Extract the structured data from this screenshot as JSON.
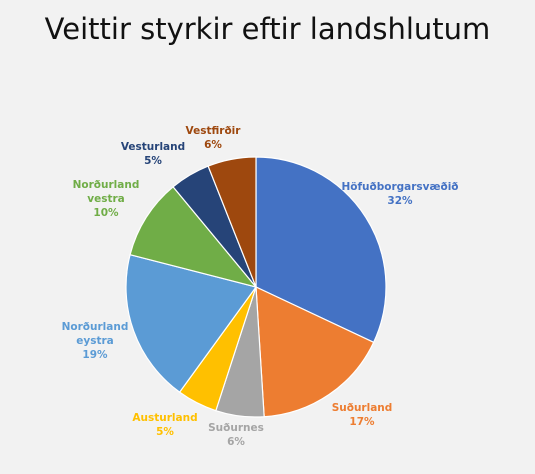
{
  "chart_data": {
    "type": "pie",
    "title": "Veittir styrkir eftir landshlutum",
    "slices": [
      {
        "label": "Höfuðborgarsvæðið",
        "value": 32,
        "pct_label": "32%",
        "color": "#4472c4"
      },
      {
        "label": "Suðurland",
        "value": 17,
        "pct_label": "17%",
        "color": "#ed7d31"
      },
      {
        "label": "Suðurnes",
        "value": 6,
        "pct_label": "6%",
        "color": "#a5a5a5"
      },
      {
        "label": "Austurland",
        "value": 5,
        "pct_label": "5%",
        "color": "#ffc000"
      },
      {
        "label": "Norðurland eystra",
        "value": 19,
        "pct_label": "19%",
        "color": "#5b9bd5"
      },
      {
        "label": "Norðurland vestra",
        "value": 10,
        "pct_label": "10%",
        "color": "#70ad47"
      },
      {
        "label": "Vesturland",
        "value": 5,
        "pct_label": "5%",
        "color": "#264478"
      },
      {
        "label": "Vestfirðir",
        "value": 6,
        "pct_label": "6%",
        "color": "#9e480e"
      }
    ],
    "legend": "none"
  }
}
